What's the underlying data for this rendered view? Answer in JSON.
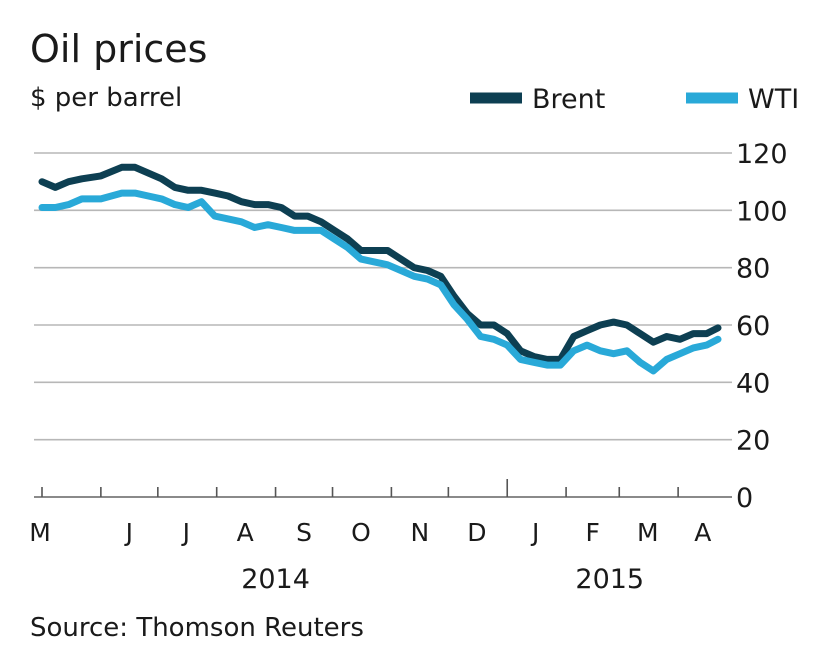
{
  "chart_data": {
    "type": "line",
    "title": "Oil prices",
    "subtitle": "$ per barrel",
    "source": "Source: Thomson Reuters",
    "ylim": [
      0,
      120
    ],
    "yticks": [
      "0",
      "20",
      "40",
      "60",
      "80",
      "100",
      "120"
    ],
    "y_axis_side": "right",
    "grid": true,
    "legend_position": "top-right",
    "x_months": [
      "M",
      "J",
      "J",
      "A",
      "S",
      "O",
      "N",
      "D",
      "J",
      "F",
      "M",
      "A"
    ],
    "x_years": [
      "2014",
      "2015"
    ],
    "x_domain": [
      "2014-05-01",
      "2015-04-22"
    ],
    "series": [
      {
        "name": "Brent",
        "color": "#0d3f52",
        "points": [
          [
            "2014-05-01",
            110
          ],
          [
            "2014-05-08",
            108
          ],
          [
            "2014-05-15",
            110
          ],
          [
            "2014-05-22",
            111
          ],
          [
            "2014-06-01",
            112
          ],
          [
            "2014-06-12",
            115
          ],
          [
            "2014-06-19",
            115
          ],
          [
            "2014-06-26",
            113
          ],
          [
            "2014-07-03",
            111
          ],
          [
            "2014-07-10",
            108
          ],
          [
            "2014-07-17",
            107
          ],
          [
            "2014-07-24",
            107
          ],
          [
            "2014-07-31",
            106
          ],
          [
            "2014-08-07",
            105
          ],
          [
            "2014-08-14",
            103
          ],
          [
            "2014-08-21",
            102
          ],
          [
            "2014-08-28",
            102
          ],
          [
            "2014-09-04",
            101
          ],
          [
            "2014-09-11",
            98
          ],
          [
            "2014-09-18",
            98
          ],
          [
            "2014-09-25",
            96
          ],
          [
            "2014-10-02",
            93
          ],
          [
            "2014-10-09",
            90
          ],
          [
            "2014-10-16",
            86
          ],
          [
            "2014-10-23",
            86
          ],
          [
            "2014-10-30",
            86
          ],
          [
            "2014-11-06",
            83
          ],
          [
            "2014-11-13",
            80
          ],
          [
            "2014-11-20",
            79
          ],
          [
            "2014-11-27",
            77
          ],
          [
            "2014-12-04",
            70
          ],
          [
            "2014-12-11",
            64
          ],
          [
            "2014-12-18",
            60
          ],
          [
            "2014-12-25",
            60
          ],
          [
            "2015-01-01",
            57
          ],
          [
            "2015-01-08",
            51
          ],
          [
            "2015-01-15",
            49
          ],
          [
            "2015-01-22",
            48
          ],
          [
            "2015-01-29",
            48
          ],
          [
            "2015-02-05",
            56
          ],
          [
            "2015-02-12",
            58
          ],
          [
            "2015-02-19",
            60
          ],
          [
            "2015-02-26",
            61
          ],
          [
            "2015-03-05",
            60
          ],
          [
            "2015-03-12",
            57
          ],
          [
            "2015-03-19",
            54
          ],
          [
            "2015-03-26",
            56
          ],
          [
            "2015-04-02",
            55
          ],
          [
            "2015-04-09",
            57
          ],
          [
            "2015-04-16",
            57
          ],
          [
            "2015-04-22",
            59
          ]
        ]
      },
      {
        "name": "WTI",
        "color": "#29a9d8",
        "points": [
          [
            "2014-05-01",
            101
          ],
          [
            "2014-05-08",
            101
          ],
          [
            "2014-05-15",
            102
          ],
          [
            "2014-05-22",
            104
          ],
          [
            "2014-06-01",
            104
          ],
          [
            "2014-06-12",
            106
          ],
          [
            "2014-06-19",
            106
          ],
          [
            "2014-06-26",
            105
          ],
          [
            "2014-07-03",
            104
          ],
          [
            "2014-07-10",
            102
          ],
          [
            "2014-07-17",
            101
          ],
          [
            "2014-07-24",
            103
          ],
          [
            "2014-07-31",
            98
          ],
          [
            "2014-08-07",
            97
          ],
          [
            "2014-08-14",
            96
          ],
          [
            "2014-08-21",
            94
          ],
          [
            "2014-08-28",
            95
          ],
          [
            "2014-09-04",
            94
          ],
          [
            "2014-09-11",
            93
          ],
          [
            "2014-09-18",
            93
          ],
          [
            "2014-09-25",
            93
          ],
          [
            "2014-10-02",
            90
          ],
          [
            "2014-10-09",
            87
          ],
          [
            "2014-10-16",
            83
          ],
          [
            "2014-10-23",
            82
          ],
          [
            "2014-10-30",
            81
          ],
          [
            "2014-11-06",
            79
          ],
          [
            "2014-11-13",
            77
          ],
          [
            "2014-11-20",
            76
          ],
          [
            "2014-11-27",
            74
          ],
          [
            "2014-12-04",
            67
          ],
          [
            "2014-12-11",
            62
          ],
          [
            "2014-12-18",
            56
          ],
          [
            "2014-12-25",
            55
          ],
          [
            "2015-01-01",
            53
          ],
          [
            "2015-01-08",
            48
          ],
          [
            "2015-01-15",
            47
          ],
          [
            "2015-01-22",
            46
          ],
          [
            "2015-01-29",
            46
          ],
          [
            "2015-02-05",
            51
          ],
          [
            "2015-02-12",
            53
          ],
          [
            "2015-02-19",
            51
          ],
          [
            "2015-02-26",
            50
          ],
          [
            "2015-03-05",
            51
          ],
          [
            "2015-03-12",
            47
          ],
          [
            "2015-03-19",
            44
          ],
          [
            "2015-03-26",
            48
          ],
          [
            "2015-04-02",
            50
          ],
          [
            "2015-04-09",
            52
          ],
          [
            "2015-04-16",
            53
          ],
          [
            "2015-04-22",
            55
          ]
        ]
      }
    ]
  }
}
